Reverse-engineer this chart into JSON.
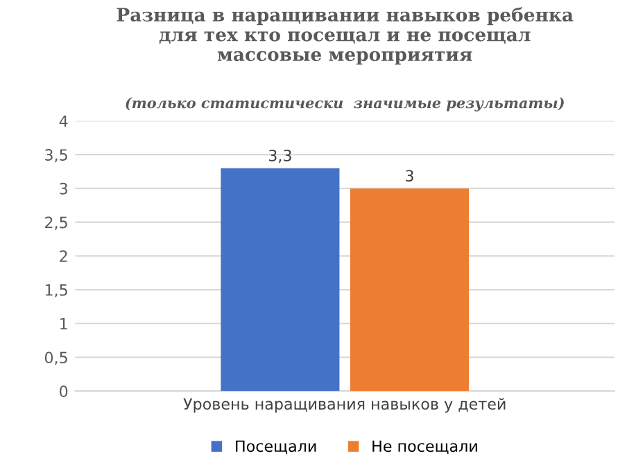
{
  "chart_data": {
    "type": "bar",
    "title": "Разница в наращивании навыков ребенка\nдля тех кто посещал и не посещал\nмассовые мероприятия",
    "subtitle": "(только статистически  значимые результаты)",
    "categories": [
      "Уровень наращивания навыков у детей"
    ],
    "series": [
      {
        "name": "Посещали",
        "color": "#4472c4",
        "values": [
          3.3
        ],
        "value_labels": [
          "3,3"
        ]
      },
      {
        "name": "Не посещали",
        "color": "#ed7d31",
        "values": [
          3
        ],
        "value_labels": [
          "3"
        ]
      }
    ],
    "ylim": [
      0,
      4
    ],
    "yticks": [
      0,
      {
        "value": 0.5,
        "label": "0,5"
      },
      1,
      {
        "value": 1.5,
        "label": "1,5"
      },
      2,
      {
        "value": 2.5,
        "label": "2,5"
      },
      3,
      {
        "value": 3.5,
        "label": "3,5"
      },
      4
    ],
    "grid": "y",
    "legend": "bottom"
  }
}
